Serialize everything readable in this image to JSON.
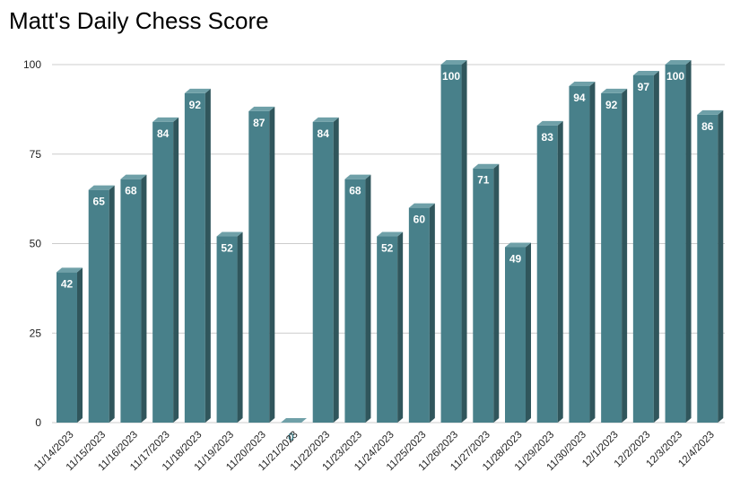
{
  "chart_data": {
    "type": "bar",
    "title": "Matt's Daily Chess Score",
    "xlabel": "",
    "ylabel": "",
    "ylim": [
      0,
      100
    ],
    "yticks": [
      0,
      25,
      50,
      75,
      100
    ],
    "grid": true,
    "legend": "none",
    "style": "3d",
    "bar_color": "#48808a",
    "bar_side_color": "#30565c",
    "bar_top_color": "#6fa0a8",
    "categories": [
      "11/14/2023",
      "11/15/2023",
      "11/16/2023",
      "11/17/2023",
      "11/18/2023",
      "11/19/2023",
      "11/20/2023",
      "11/21/2023",
      "11/22/2023",
      "11/23/2023",
      "11/24/2023",
      "11/25/2023",
      "11/26/2023",
      "11/27/2023",
      "11/28/2023",
      "11/29/2023",
      "11/30/2023",
      "12/1/2023",
      "12/2/2023",
      "12/3/2023",
      "12/4/2023"
    ],
    "values": [
      42,
      65,
      68,
      84,
      92,
      52,
      87,
      0,
      84,
      68,
      52,
      60,
      100,
      71,
      49,
      83,
      94,
      92,
      97,
      100,
      86
    ]
  }
}
